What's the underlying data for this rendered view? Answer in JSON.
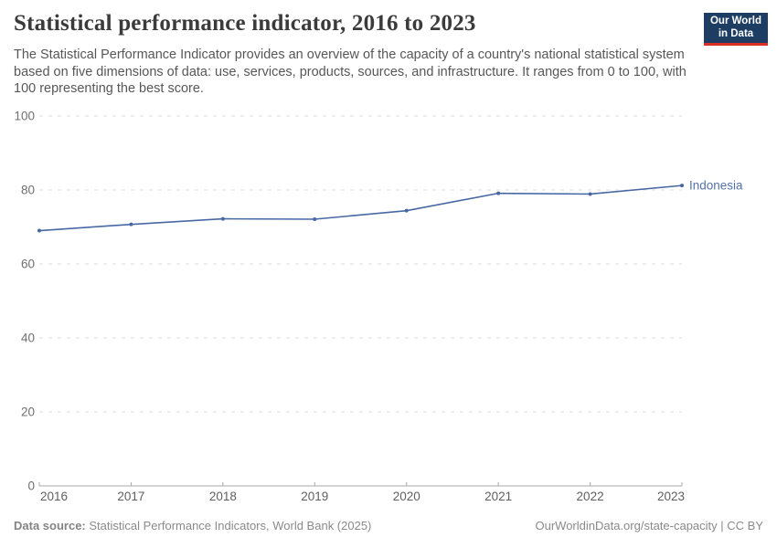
{
  "header": {
    "title": "Statistical performance indicator, 2016 to 2023",
    "subtitle": "The Statistical Performance Indicator provides an overview of the capacity of a country's national statistical system based on five dimensions of data: use, services, products, sources, and infrastructure. It ranges from 0 to 100, with 100 representing the best score.",
    "logo": {
      "line1": "Our World",
      "line2": "in Data"
    }
  },
  "chart_data": {
    "type": "line",
    "title": "Statistical performance indicator, 2016 to 2023",
    "x": [
      2016,
      2017,
      2018,
      2019,
      2020,
      2021,
      2022,
      2023
    ],
    "series": [
      {
        "name": "Indonesia",
        "color": "#4768a4",
        "values": [
          69.0,
          70.7,
          72.2,
          72.1,
          74.4,
          79.1,
          78.9,
          81.2
        ]
      }
    ],
    "xlabel": "",
    "ylabel": "",
    "ylim": [
      0,
      100
    ],
    "yticks": [
      0,
      20,
      40,
      60,
      80,
      100
    ],
    "grid": true,
    "legend_position": "end-of-line-label"
  },
  "footer": {
    "datasource_label": "Data source:",
    "datasource_text": "Statistical Performance Indicators, World Bank (2025)",
    "credit": "OurWorldinData.org/state-capacity | CC BY"
  },
  "colors": {
    "line": "#4768a4",
    "entity_label": "#5373a8",
    "grid": "#dcdcdc",
    "axis": "#a8a8a8",
    "y_tick_label": "#6f6f6f",
    "x_tick_label": "#5f5f5f",
    "logo_bg": "#1d3d63",
    "logo_stripe": "#dc2f23"
  }
}
